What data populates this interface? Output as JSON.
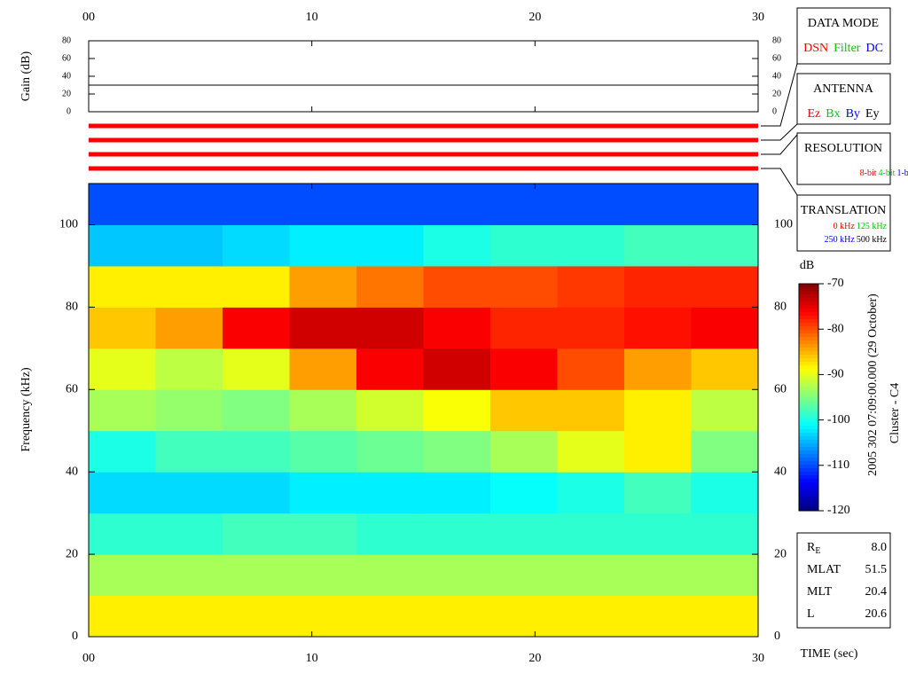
{
  "chart_data": [
    {
      "type": "line",
      "ylabel": "Gain (dB)",
      "x": [
        0,
        30
      ],
      "values": [
        30,
        30
      ],
      "color": "#000000",
      "xlim": [
        0,
        30
      ],
      "ylim": [
        0,
        80
      ],
      "xticks": [
        {
          "value": 0,
          "label": "00"
        },
        10,
        20,
        30
      ],
      "yticks": [
        0,
        20,
        40,
        60,
        80
      ]
    },
    {
      "type": "heatmap",
      "xlabel": "TIME (sec)",
      "ylabel": "Frequency (kHz)",
      "x": [
        0,
        3,
        6,
        9,
        12,
        15,
        18,
        21,
        24,
        27,
        30
      ],
      "y": [
        0,
        10,
        20,
        30,
        40,
        50,
        60,
        70,
        80,
        90,
        100,
        110
      ],
      "values": [
        [
          -88,
          -88,
          -88,
          -88,
          -88,
          -88,
          -88,
          -88,
          -88,
          -88
        ],
        [
          -93,
          -93,
          -93,
          -93,
          -93,
          -93,
          -93,
          -93,
          -93,
          -93
        ],
        [
          -99,
          -99,
          -98,
          -98,
          -99,
          -99,
          -99,
          -99,
          -99,
          -99
        ],
        [
          -103,
          -103,
          -103,
          -102,
          -102,
          -102,
          -101,
          -100,
          -98,
          -100
        ],
        [
          -100,
          -98,
          -98,
          -97,
          -96,
          -95,
          -93,
          -90,
          -88,
          -95
        ],
        [
          -93,
          -94,
          -95,
          -93,
          -91,
          -89,
          -86,
          -86,
          -88,
          -92
        ],
        [
          -90,
          -92,
          -90,
          -84,
          -76,
          -74,
          -76,
          -80,
          -84,
          -86
        ],
        [
          -86,
          -84,
          -76,
          -74,
          -74,
          -76,
          -78,
          -78,
          -77,
          -76
        ],
        [
          -88,
          -88,
          -88,
          -84,
          -82,
          -80,
          -80,
          -79,
          -78,
          -78
        ],
        [
          -104,
          -104,
          -103,
          -102,
          -102,
          -100,
          -99,
          -99,
          -98,
          -98
        ],
        [
          -110,
          -110,
          -110,
          -110,
          -110,
          -110,
          -110,
          -110,
          -110,
          -110
        ]
      ],
      "xlim": [
        0,
        30
      ],
      "ylim": [
        0,
        110
      ],
      "xticks": [
        {
          "value": 0,
          "label": "00"
        },
        10,
        20,
        30
      ],
      "yticks": [
        0,
        20,
        40,
        60,
        80,
        100
      ],
      "colormap": "jet",
      "zlabel": "dB",
      "zlim": [
        -120,
        -70
      ],
      "zticks": [
        -70,
        -80,
        -90,
        -100,
        -110,
        -120
      ],
      "annotations": [
        "2005 302 07:09:00.000 (29 October)",
        "Cluster - C4"
      ]
    }
  ],
  "boxes": [
    {
      "title": "DATA MODE",
      "lines": [
        [
          {
            "text": "DSN",
            "color": "#ff0000"
          },
          {
            "text": "Filter",
            "color": "#00cc00"
          },
          {
            "text": "DC",
            "color": "#0000ff"
          }
        ]
      ]
    },
    {
      "title": "ANTENNA",
      "lines": [
        [
          {
            "text": "Ez",
            "color": "#ff0000"
          },
          {
            "text": "Bx",
            "color": "#00cc00"
          },
          {
            "text": "By",
            "color": "#0000ff"
          },
          {
            "text": "Ey",
            "color": "#000000"
          }
        ]
      ]
    },
    {
      "title": "RESOLUTION",
      "lines": [
        [
          {
            "text": "8-bit",
            "color": "#ff0000"
          },
          {
            "text": "4-bit",
            "color": "#00cc00"
          },
          {
            "text": "1-bit",
            "color": "#0000ff"
          }
        ]
      ]
    },
    {
      "title": "TRANSLATION",
      "lines": [
        [
          {
            "text": "0 kHz",
            "color": "#ff0000"
          },
          {
            "text": "125 kHz",
            "color": "#00cc00"
          }
        ],
        [
          {
            "text": "250 kHz",
            "color": "#0000ff"
          },
          {
            "text": "500 kHz",
            "color": "#000000"
          }
        ]
      ]
    }
  ],
  "info": [
    {
      "label": "R",
      "sub": "E",
      "value": "8.0"
    },
    {
      "label": "MLAT",
      "value": "51.5"
    },
    {
      "label": "MLT",
      "value": "20.4"
    },
    {
      "label": "L",
      "value": "20.6"
    }
  ]
}
